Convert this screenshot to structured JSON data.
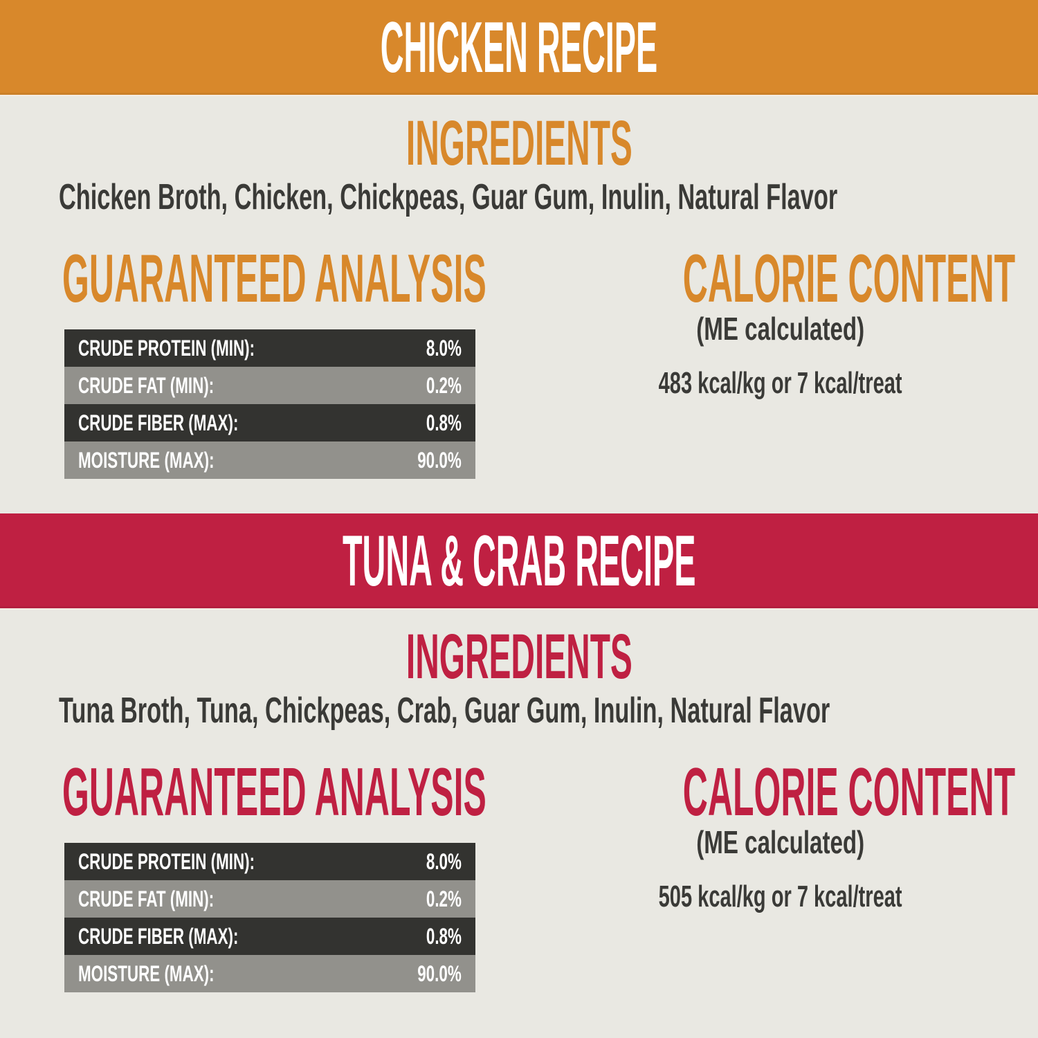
{
  "colors": {
    "background": "#e9e8e2",
    "chicken-accent": "#d8882b",
    "tuna-accent": "#bf2042",
    "row-dark": "#333330",
    "row-gray": "#92918c",
    "text-dark": "#3a3a37",
    "banner-text": "#ffffff",
    "table-text": "#ffffff"
  },
  "sections": [
    {
      "banner_label": "CHICKEN RECIPE",
      "ingredients_title": "INGREDIENTS",
      "ingredients": "Chicken Broth, Chicken, Chickpeas, Guar Gum, Inulin, Natural Flavor",
      "analysis_title": "GUARANTEED ANALYSIS",
      "analysis_rows": [
        {
          "label": "CRUDE PROTEIN (MIN):",
          "value": "8.0%"
        },
        {
          "label": "CRUDE FAT (MIN):",
          "value": "0.2%"
        },
        {
          "label": "CRUDE FIBER (MAX):",
          "value": "0.8%"
        },
        {
          "label": "MOISTURE (MAX):",
          "value": "90.0%"
        }
      ],
      "calorie_title": "CALORIE CONTENT",
      "calorie_subtitle": "(ME calculated)",
      "calorie_value": "483 kcal/kg or 7 kcal/treat"
    },
    {
      "banner_label": "TUNA & CRAB RECIPE",
      "ingredients_title": "INGREDIENTS",
      "ingredients": "Tuna Broth, Tuna, Chickpeas, Crab, Guar Gum, Inulin, Natural Flavor",
      "analysis_title": "GUARANTEED ANALYSIS",
      "analysis_rows": [
        {
          "label": "CRUDE PROTEIN (MIN):",
          "value": "8.0%"
        },
        {
          "label": "CRUDE FAT (MIN):",
          "value": "0.2%"
        },
        {
          "label": "CRUDE FIBER (MAX):",
          "value": "0.8%"
        },
        {
          "label": "MOISTURE (MAX):",
          "value": "90.0%"
        }
      ],
      "calorie_title": "CALORIE CONTENT",
      "calorie_subtitle": "(ME calculated)",
      "calorie_value": "505 kcal/kg or 7 kcal/treat"
    }
  ]
}
